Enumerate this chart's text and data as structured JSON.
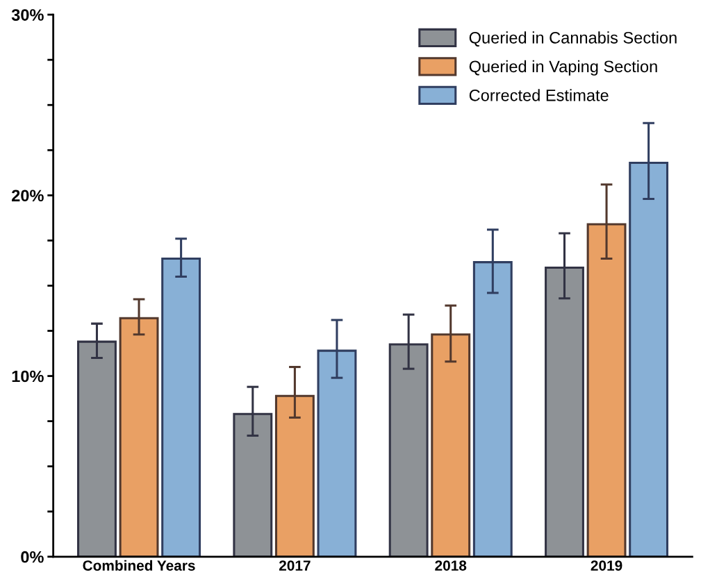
{
  "chart_data": {
    "type": "bar",
    "categories": [
      "Combined Years",
      "2017",
      "2018",
      "2019"
    ],
    "series": [
      {
        "name": "Queried in Cannabis Section",
        "color": "#8e9296",
        "values": [
          11.9,
          7.9,
          11.75,
          16.0
        ],
        "errors": [
          [
            11.0,
            12.9
          ],
          [
            6.7,
            9.4
          ],
          [
            10.4,
            13.4
          ],
          [
            14.3,
            17.9
          ]
        ]
      },
      {
        "name": "Queried in Vaping Section",
        "color": "#e9a064",
        "values": [
          13.2,
          8.9,
          12.3,
          18.4
        ],
        "errors": [
          [
            12.3,
            14.25
          ],
          [
            7.7,
            10.5
          ],
          [
            10.8,
            13.9
          ],
          [
            16.5,
            20.6
          ]
        ]
      },
      {
        "name": "Corrected Estimate",
        "color": "#88b0d6",
        "values": [
          16.5,
          11.4,
          16.3,
          21.8
        ],
        "errors": [
          [
            15.5,
            17.6
          ],
          [
            9.9,
            13.1
          ],
          [
            14.6,
            18.1
          ],
          [
            19.8,
            24.0
          ]
        ]
      }
    ],
    "ylim": [
      0,
      30
    ],
    "yticks": [
      {
        "value": 0,
        "label": "0%"
      },
      {
        "value": 2.5,
        "label": null
      },
      {
        "value": 5,
        "label": null
      },
      {
        "value": 7.5,
        "label": null
      },
      {
        "value": 10,
        "label": "10%"
      },
      {
        "value": 12.5,
        "label": null
      },
      {
        "value": 15,
        "label": null
      },
      {
        "value": 17.5,
        "label": null
      },
      {
        "value": 20,
        "label": "20%"
      },
      {
        "value": 22.5,
        "label": null
      },
      {
        "value": 25,
        "label": null
      },
      {
        "value": 27.5,
        "label": null
      },
      {
        "value": 30,
        "label": "30%"
      }
    ],
    "grid": false,
    "legend": "top right"
  }
}
